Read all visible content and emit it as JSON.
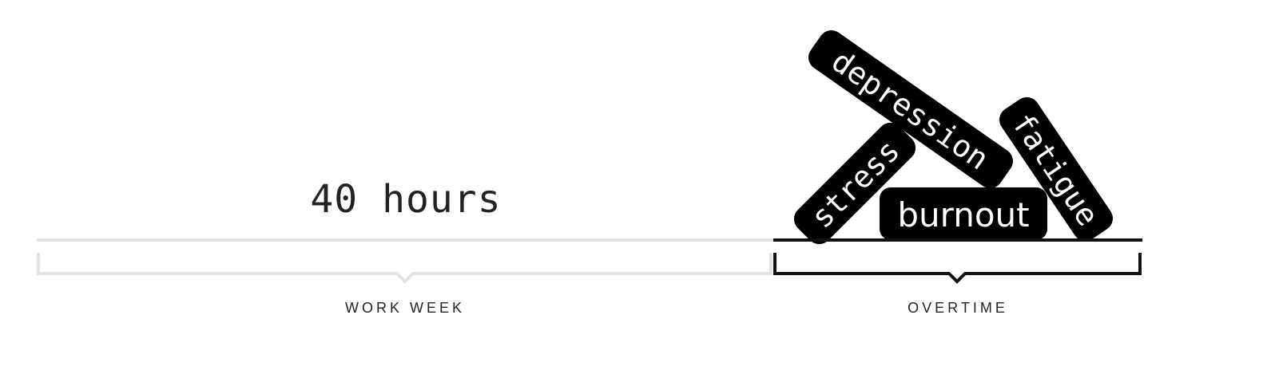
{
  "work_week": {
    "hours_label": "40 hours",
    "section_label": "WORK WEEK"
  },
  "overtime": {
    "section_label": "OVERTIME",
    "pills": [
      "depression",
      "fatigue",
      "stress",
      "burnout"
    ]
  },
  "colors": {
    "work_week_line": "#e3e3e3",
    "overtime_line": "#111111",
    "pill_fill": "#000000",
    "pill_text": "#ffffff",
    "label_text": "#222222"
  }
}
